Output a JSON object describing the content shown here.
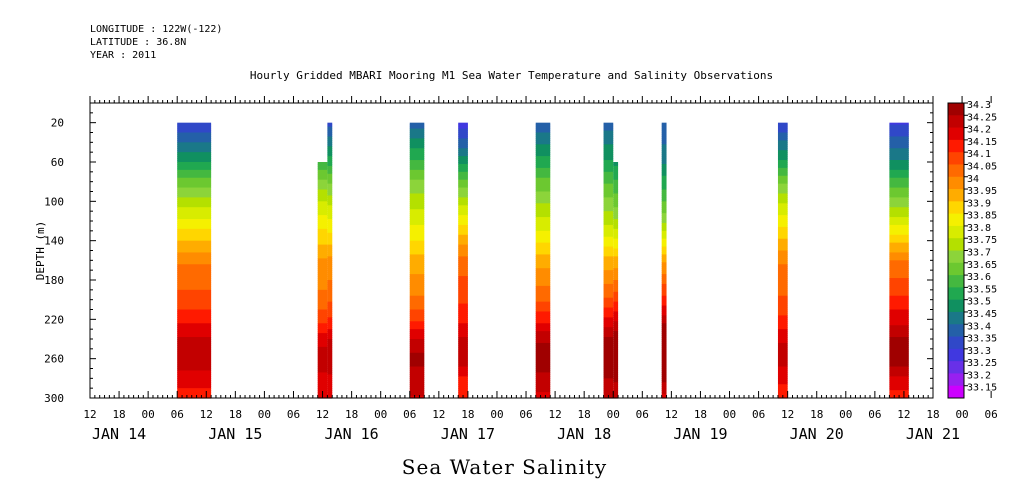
{
  "header": {
    "longitude": "LONGITUDE : 122W(-122)",
    "latitude": "LATITUDE : 36.8N",
    "year": "YEAR : 2011"
  },
  "chart_data": {
    "type": "heatmap",
    "title": "Hourly Gridded MBARI Mooring M1 Sea Water Temperature and Salinity Observations",
    "footer_title": "Sea Water Salinity",
    "ylabel": "DEPTH (m)",
    "xlabel": "",
    "y_axis": {
      "range": [
        0,
        300
      ],
      "inverted": true,
      "ticks": [
        20,
        60,
        100,
        140,
        180,
        220,
        260,
        300
      ]
    },
    "x_axis": {
      "range_hours": [
        -18,
        156
      ],
      "hour_ticks": [
        "12",
        "18",
        "00",
        "06",
        "12",
        "18",
        "00",
        "06",
        "12",
        "18",
        "00",
        "06",
        "12",
        "18",
        "00",
        "06",
        "12",
        "18",
        "00",
        "06",
        "12",
        "18",
        "00",
        "06",
        "12",
        "18",
        "00",
        "06",
        "12",
        "18",
        "00",
        "06",
        "12"
      ],
      "day_labels": [
        {
          "label": "JAN 14",
          "hour": -12
        },
        {
          "label": "JAN 15",
          "hour": 12
        },
        {
          "label": "JAN 16",
          "hour": 36
        },
        {
          "label": "JAN 17",
          "hour": 60
        },
        {
          "label": "JAN 18",
          "hour": 84
        },
        {
          "label": "JAN 19",
          "hour": 108
        },
        {
          "label": "JAN 20",
          "hour": 132
        },
        {
          "label": "JAN 21",
          "hour": 156
        }
      ]
    },
    "data_segments": [
      {
        "start_hour": 0,
        "end_hour": 7,
        "top_depth": 20,
        "noise": 0.0
      },
      {
        "start_hour": 29,
        "end_hour": 31,
        "top_depth": 60,
        "noise": 0.05
      },
      {
        "start_hour": 31,
        "end_hour": 32,
        "top_depth": 20,
        "noise": 0.03
      },
      {
        "start_hour": 48,
        "end_hour": 51,
        "top_depth": 20,
        "noise": 0.07
      },
      {
        "start_hour": 58,
        "end_hour": 60,
        "top_depth": 20,
        "noise": -0.03
      },
      {
        "start_hour": 74,
        "end_hour": 77,
        "top_depth": 20,
        "noise": 0.06
      },
      {
        "start_hour": 88,
        "end_hour": 90,
        "top_depth": 20,
        "noise": 0.08
      },
      {
        "start_hour": 90,
        "end_hour": 91,
        "top_depth": 60,
        "noise": 0.1
      },
      {
        "start_hour": 100,
        "end_hour": 101,
        "top_depth": 20,
        "noise": 0.12
      },
      {
        "start_hour": 124,
        "end_hour": 126,
        "top_depth": 20,
        "noise": -0.02
      },
      {
        "start_hour": 147,
        "end_hour": 151,
        "top_depth": 20,
        "noise": 0.05
      }
    ],
    "profile": [
      {
        "depth": 20,
        "value": 33.35
      },
      {
        "depth": 40,
        "value": 33.45
      },
      {
        "depth": 60,
        "value": 33.55
      },
      {
        "depth": 80,
        "value": 33.67
      },
      {
        "depth": 100,
        "value": 33.77
      },
      {
        "depth": 120,
        "value": 33.86
      },
      {
        "depth": 140,
        "value": 33.95
      },
      {
        "depth": 160,
        "value": 34.04
      },
      {
        "depth": 180,
        "value": 34.08
      },
      {
        "depth": 200,
        "value": 34.12
      },
      {
        "depth": 220,
        "value": 34.18
      },
      {
        "depth": 240,
        "value": 34.26
      },
      {
        "depth": 260,
        "value": 34.3
      },
      {
        "depth": 280,
        "value": 34.22
      },
      {
        "depth": 300,
        "value": 34.18
      }
    ],
    "colorbar": {
      "levels": [
        "34.3",
        "34.25",
        "34.2",
        "34.15",
        "34.1",
        "34.05",
        "34",
        "33.95",
        "33.9",
        "33.85",
        "33.8",
        "33.75",
        "33.7",
        "33.65",
        "33.6",
        "33.55",
        "33.5",
        "33.45",
        "33.4",
        "33.35",
        "33.3",
        "33.25",
        "33.2",
        "33.15"
      ],
      "colors": [
        "#a00000",
        "#c20000",
        "#e00000",
        "#ff1a00",
        "#ff4400",
        "#ff6a00",
        "#ff8c00",
        "#ffac00",
        "#ffd600",
        "#f5f000",
        "#d8ec00",
        "#b4e000",
        "#8cd43a",
        "#6cc830",
        "#44b840",
        "#20a850",
        "#109060",
        "#1a7888",
        "#2460a8",
        "#3048c8",
        "#4038e0",
        "#6830e8",
        "#9820f0",
        "#cc00ff"
      ]
    }
  }
}
